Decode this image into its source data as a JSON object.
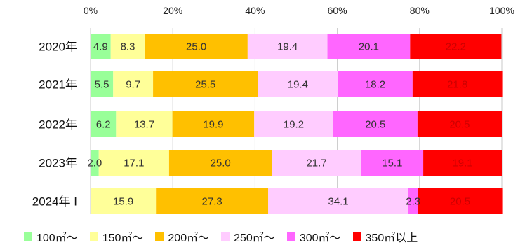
{
  "chart_data": {
    "type": "bar",
    "orientation": "horizontal",
    "stacked": true,
    "percent": true,
    "categories": [
      "2020年",
      "2021年",
      "2022年",
      "2023年",
      "2024年 I"
    ],
    "xlim": [
      0,
      100
    ],
    "x_ticks": [
      "0%",
      "20%",
      "40%",
      "60%",
      "80%",
      "100%"
    ],
    "legend_position": "bottom",
    "grid": true,
    "series": [
      {
        "name": "100㎡～",
        "color": "#99ff99",
        "values": [
          4.9,
          5.5,
          6.2,
          2.0,
          0
        ]
      },
      {
        "name": "150㎡～",
        "color": "#ffff99",
        "values": [
          8.3,
          9.7,
          13.7,
          17.1,
          15.9
        ]
      },
      {
        "name": "200㎡～",
        "color": "#ffc000",
        "values": [
          25.0,
          25.5,
          19.9,
          25.0,
          27.3
        ]
      },
      {
        "name": "250㎡～",
        "color": "#ffccff",
        "values": [
          19.4,
          19.4,
          19.2,
          21.7,
          34.1
        ]
      },
      {
        "name": "300㎡～",
        "color": "#ff66ff",
        "values": [
          20.1,
          18.2,
          20.5,
          15.1,
          2.3
        ]
      },
      {
        "name": "350㎡以上",
        "color": "#ff0000",
        "values": [
          22.2,
          21.8,
          20.5,
          19.1,
          20.5
        ]
      }
    ]
  }
}
